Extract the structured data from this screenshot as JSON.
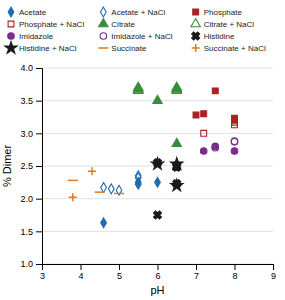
{
  "chart_data": {
    "type": "scatter",
    "xlabel": "pH",
    "ylabel": "% Dimer",
    "xlim": [
      3,
      9
    ],
    "ylim": [
      1.0,
      4.0
    ],
    "xticks": [
      3,
      4,
      5,
      6,
      7,
      8,
      9
    ],
    "yticks": [
      {
        "value": 1.0,
        "label": "1.0"
      },
      1.5,
      {
        "value": 2.0,
        "label": "2.0"
      },
      2.5,
      {
        "value": 3.0,
        "label": "3.0"
      },
      3.5,
      {
        "value": 4.0,
        "label": "4.0"
      }
    ],
    "grid": true,
    "legend": "top",
    "series": [
      {
        "name": "Acetate",
        "color": "#1F6CB0",
        "marker": "diamond",
        "x": [
          4.6,
          5.5,
          5.5,
          6.0
        ],
        "values": [
          1.63,
          2.25,
          2.22,
          2.25
        ]
      },
      {
        "name": "Acetate + NaCl",
        "color": "#1F6CB0",
        "marker": "diamond-open",
        "x": [
          4.6,
          4.8,
          5.0,
          5.5,
          5.5
        ],
        "values": [
          2.17,
          2.15,
          2.13,
          2.35,
          2.32
        ]
      },
      {
        "name": "Phosphate",
        "color": "#AA2222",
        "marker": "square",
        "x": [
          7.0,
          7.2,
          7.5,
          8.0,
          8.0
        ],
        "values": [
          3.28,
          3.3,
          3.65,
          3.23,
          3.2
        ]
      },
      {
        "name": "Phosphate + NaCl",
        "color": "#AA2222",
        "marker": "square-open",
        "x": [
          7.2,
          8.0,
          8.0
        ],
        "values": [
          3.0,
          3.17,
          3.13
        ]
      },
      {
        "name": "Citrate",
        "color": "#3A8C3A",
        "marker": "triangle",
        "x": [
          5.5,
          5.5,
          6.0,
          6.5,
          6.5,
          6.5
        ],
        "values": [
          3.68,
          3.7,
          3.5,
          3.68,
          3.7,
          2.84
        ]
      },
      {
        "name": "Citrate + NaCl",
        "color": "#3A8C3A",
        "marker": "triangle-open",
        "x": [
          5.5,
          5.5,
          6.5,
          6.5
        ],
        "values": [
          3.65,
          3.67,
          3.65,
          3.67
        ]
      },
      {
        "name": "Imidazole",
        "color": "#7B2D8B",
        "marker": "circle",
        "x": [
          7.2,
          7.5,
          8.0
        ],
        "values": [
          2.73,
          2.8,
          2.73
        ]
      },
      {
        "name": "Imidazole + NaCl",
        "color": "#7B2D8B",
        "marker": "circle-open",
        "x": [
          7.5,
          8.0,
          8.0
        ],
        "values": [
          2.78,
          2.87,
          2.88
        ]
      },
      {
        "name": "Histidine",
        "color": "#1A1A1A",
        "marker": "x",
        "x": [
          6.0,
          6.0,
          6.5,
          6.5,
          6.5
        ],
        "values": [
          1.75,
          2.55,
          2.5,
          2.48,
          2.23
        ]
      },
      {
        "name": "Histidine + NaCl",
        "color": "#1A1A1A",
        "marker": "star",
        "x": [
          6.0,
          6.5,
          6.5
        ],
        "values": [
          2.53,
          2.53,
          2.2
        ]
      },
      {
        "name": "Succinate",
        "color": "#E07820",
        "marker": "hline",
        "x": [
          3.8,
          4.5,
          5.0
        ],
        "values": [
          2.28,
          2.1,
          2.08
        ]
      },
      {
        "name": "Succinate + NaCl",
        "color": "#E07820",
        "marker": "plus",
        "x": [
          3.8,
          4.3
        ],
        "values": [
          2.02,
          2.42
        ]
      }
    ]
  }
}
